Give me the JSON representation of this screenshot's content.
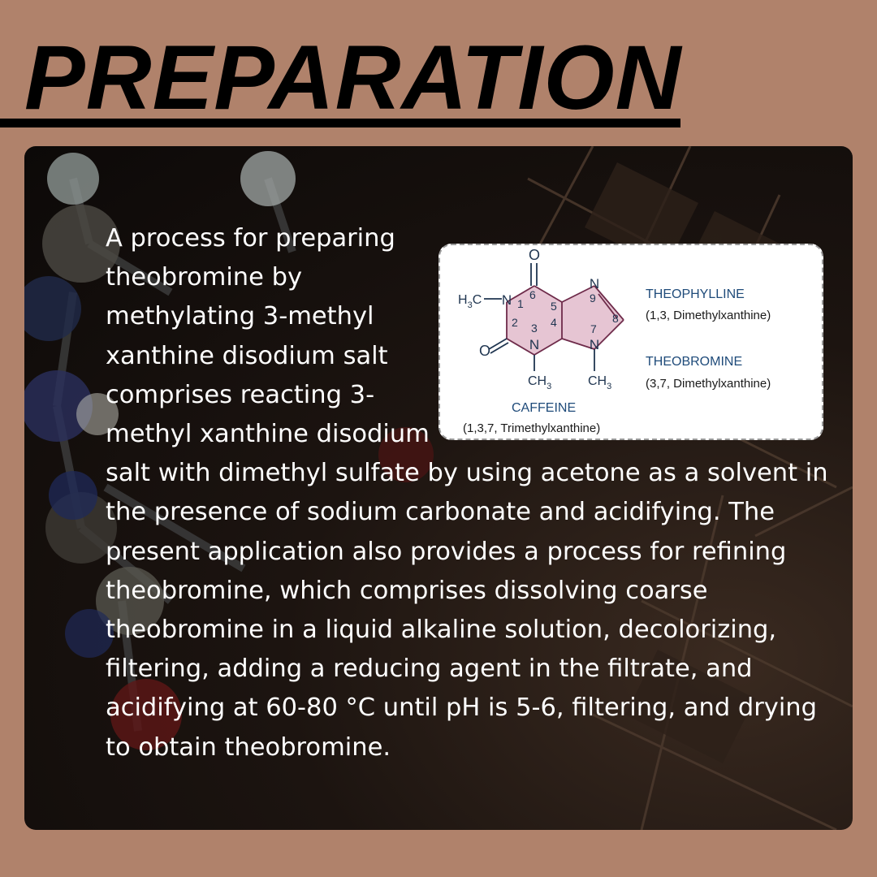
{
  "title": "PREPARATION",
  "body": {
    "text": "A process for preparing  theobromine by methylating 3-methyl xanthine disodium salt comprises reacting 3-methyl xanthine disodium salt with dimethyl sulfate by using acetone as a solvent in the presence of sodium carbonate and acidifying. The present application also provides a process for refining theobromine, which comprises dissolving coarse theobromine in a liquid alkaline solution, decolorizing, filtering, adding a reducing agent in the filtrate, and acidifying at 60-80 °C until pH is 5-6, filtering, and drying to obtain theobromine."
  },
  "diagram": {
    "atoms": {
      "o_top": "O",
      "o_left": "O",
      "n1": "N",
      "n3": "N",
      "n7": "N",
      "n9": "N",
      "h3c_prefix": "H",
      "h3c_sub": "3",
      "h3c_suffix": "C",
      "ch3": "CH",
      "ch3_sub": "3"
    },
    "numbers": [
      "1",
      "2",
      "3",
      "4",
      "5",
      "6",
      "7",
      "8",
      "9"
    ],
    "labels": {
      "theophylline": "THEOPHYLLINE",
      "theophylline_sub": "(1,3, Dimethylxanthine)",
      "theobromine": "THEOBROMINE",
      "theobromine_sub": "(3,7, Dimethylxanthine)",
      "caffeine": "CAFFEINE",
      "caffeine_sub": "(1,3,7, Trimethylxanthine)"
    }
  },
  "colors": {
    "page_background": "#b0826b",
    "heading": "#000000",
    "body_text": "#ffffff",
    "label_blue": "#1f4b7a",
    "ring_fill": "#e6c5d3",
    "bond": "#6e2b4a"
  }
}
